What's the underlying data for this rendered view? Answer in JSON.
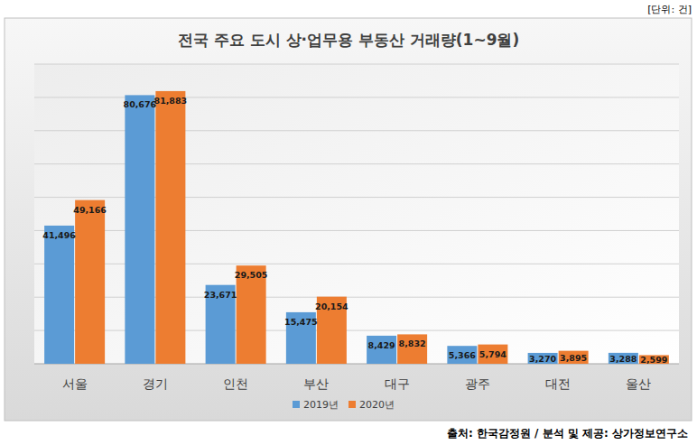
{
  "chart_data": {
    "type": "bar",
    "title": "전국 주요 도시 상·업무용 부동산 거래량(1~9월)",
    "annotations": [
      "[단위: 건]",
      "출처: 한국감정원 / 분석 및 제공: 상가정보연구소"
    ],
    "categories": [
      "서울",
      "경기",
      "인천",
      "부산",
      "대구",
      "광주",
      "대전",
      "울산"
    ],
    "series": [
      {
        "name": "2019년",
        "color": "#5b9bd5",
        "values": [
          41496,
          80676,
          23671,
          15475,
          8429,
          5366,
          3270,
          3288
        ],
        "value_labels": [
          "41,496",
          "80,676",
          "23,671",
          "15,475",
          "8,429",
          "5,366",
          "3,270",
          "3,288"
        ]
      },
      {
        "name": "2020년",
        "color": "#ed7d31",
        "values": [
          49166,
          81883,
          29505,
          20154,
          8832,
          5794,
          3895,
          2599
        ],
        "value_labels": [
          "49,166",
          "81,883",
          "29,505",
          "20,154",
          "8,832",
          "5,794",
          "3,895",
          "2,599"
        ]
      }
    ],
    "ylim": [
      0,
      90000
    ],
    "yticks": [
      0,
      10000,
      20000,
      30000,
      40000,
      50000,
      60000,
      70000,
      80000,
      90000
    ],
    "grid": true,
    "legend": "bottom",
    "data_labels": true,
    "tick_labels": "x"
  }
}
